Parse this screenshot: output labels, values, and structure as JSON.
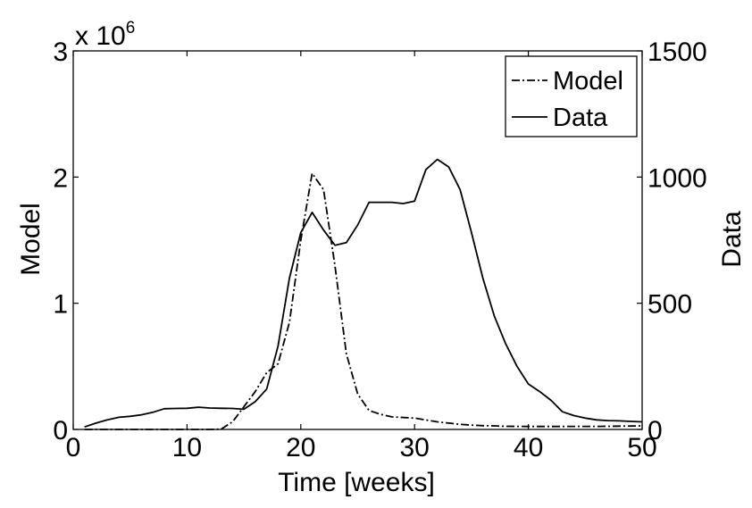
{
  "chart_data": {
    "type": "line",
    "title": "",
    "xlabel": "Time [weeks]",
    "ylabel_left": "Model",
    "ylabel_right": "Data",
    "xlim": [
      0,
      50
    ],
    "ylim_left": [
      0,
      3000000
    ],
    "ylim_right": [
      0,
      1500
    ],
    "xticks": [
      0,
      10,
      20,
      30,
      40,
      50
    ],
    "xtick_labels": [
      "0",
      "10",
      "20",
      "30",
      "40",
      "50"
    ],
    "yticks_left": [
      0,
      1000000,
      2000000,
      3000000
    ],
    "ytick_labels_left": [
      "0",
      "1",
      "2",
      "3"
    ],
    "yticks_right": [
      0,
      500,
      1000,
      1500
    ],
    "ytick_labels_right": [
      "0",
      "500",
      "1000",
      "1500"
    ],
    "exponent_label": {
      "base": "x 10",
      "power": "6"
    },
    "grid": false,
    "legend": {
      "placement": "top-right",
      "entries": [
        "Model",
        "Data"
      ]
    },
    "series": [
      {
        "name": "Model",
        "axis": "left",
        "style": "dash-dot",
        "x": [
          1,
          2,
          3,
          4,
          5,
          6,
          7,
          8,
          9,
          10,
          11,
          12,
          13,
          14,
          15,
          16,
          17,
          18,
          19,
          20,
          21,
          22,
          23,
          24,
          25,
          26,
          27,
          28,
          29,
          30,
          31,
          32,
          33,
          34,
          35,
          36,
          37,
          38,
          39,
          40,
          41,
          42,
          43,
          44,
          45,
          46,
          47,
          48,
          49,
          50
        ],
        "values": [
          0,
          0,
          0,
          0,
          0,
          0,
          0,
          0,
          0,
          0,
          0,
          0,
          2000,
          60000,
          180000,
          300000,
          450000,
          520000,
          850000,
          1500000,
          2030000,
          1900000,
          1300000,
          600000,
          280000,
          150000,
          120000,
          100000,
          95000,
          90000,
          75000,
          60000,
          50000,
          40000,
          35000,
          30000,
          28000,
          25000,
          24000,
          23000,
          23000,
          23000,
          23000,
          24000,
          24000,
          24000,
          25000,
          26000,
          27000,
          28000
        ]
      },
      {
        "name": "Data",
        "axis": "right",
        "style": "solid",
        "x": [
          1,
          2,
          3,
          4,
          5,
          6,
          7,
          8,
          9,
          10,
          11,
          12,
          13,
          14,
          15,
          16,
          17,
          18,
          19,
          20,
          21,
          22,
          23,
          24,
          25,
          26,
          27,
          28,
          29,
          30,
          31,
          32,
          33,
          34,
          35,
          36,
          37,
          38,
          39,
          40,
          41,
          42,
          43,
          44,
          45,
          46,
          47,
          48,
          49,
          50
        ],
        "values": [
          10,
          25,
          38,
          48,
          52,
          58,
          68,
          82,
          83,
          84,
          88,
          85,
          84,
          83,
          80,
          110,
          160,
          330,
          600,
          780,
          860,
          790,
          730,
          740,
          810,
          900,
          900,
          900,
          895,
          905,
          1030,
          1070,
          1040,
          950,
          780,
          600,
          450,
          340,
          250,
          180,
          150,
          115,
          70,
          55,
          45,
          38,
          35,
          34,
          32,
          30
        ]
      }
    ]
  }
}
